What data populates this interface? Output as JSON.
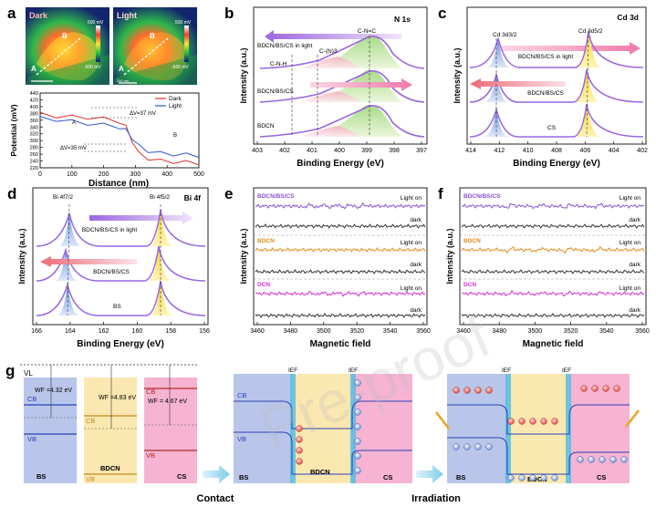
{
  "panel_labels": {
    "a": "a",
    "b": "b",
    "c": "c",
    "d": "d",
    "e": "e",
    "f": "f",
    "g": "g"
  },
  "watermark": "Pre-proof",
  "panel_a": {
    "map_dark_label": "Dark",
    "map_light_label": "Light",
    "map_dark_scale_top": "500 mV",
    "map_dark_scale_bottom": "-500 mV",
    "map_light_scale_top": "500 mV",
    "map_light_scale_bottom": "-500 mV",
    "point_A": "A",
    "point_B": "B",
    "scale_bar": "200 nm",
    "chart_data": {
      "type": "line",
      "xlabel": "Distance (nm)",
      "ylabel": "Potential (mV)",
      "xlim": [
        0,
        500
      ],
      "ylim": [
        220,
        440
      ],
      "xticks": [
        "0",
        "100",
        "200",
        "300",
        "400",
        "500"
      ],
      "yticks": [
        "220",
        "240",
        "260",
        "280",
        "300",
        "320",
        "340",
        "360",
        "380",
        "400",
        "420",
        "440"
      ],
      "legend": [
        "Dark",
        "Light"
      ],
      "series": [
        {
          "name": "Dark",
          "color": "#e0312b",
          "x": [
            0,
            50,
            100,
            150,
            200,
            250,
            270,
            290,
            310,
            340,
            380,
            420,
            460,
            500
          ],
          "y": [
            378,
            372,
            370,
            368,
            364,
            356,
            340,
            300,
            262,
            248,
            240,
            238,
            236,
            234
          ]
        },
        {
          "name": "Light",
          "color": "#3256d6",
          "x": [
            0,
            50,
            100,
            150,
            200,
            250,
            270,
            290,
            310,
            340,
            380,
            420,
            460,
            500
          ],
          "y": [
            366,
            362,
            356,
            350,
            346,
            340,
            330,
            308,
            284,
            270,
            262,
            260,
            258,
            256
          ]
        }
      ],
      "annotations": [
        "ΔV=37 mV",
        "ΔV=35 mV",
        "A",
        "B"
      ]
    }
  },
  "panel_b": {
    "title": "N 1s",
    "chart_data": {
      "type": "line",
      "xlabel": "Binding Energy (eV)",
      "ylabel": "Intensity (a.u.)",
      "xlim": [
        403,
        397
      ],
      "xticks": [
        "403",
        "402",
        "401",
        "400",
        "399",
        "398",
        "397"
      ],
      "series_labels": [
        "BDCN/BS/CS in light",
        "BDCN/BS/CS",
        "BDCN"
      ],
      "peak_labels": [
        "C-N-H",
        "C-(N)3",
        "C-N=C"
      ]
    }
  },
  "panel_c": {
    "title": "Cd 3d",
    "chart_data": {
      "type": "line",
      "xlabel": "Binding Energy (eV)",
      "ylabel": "Intensity (a.u.)",
      "xlim": [
        414,
        402
      ],
      "xticks": [
        "414",
        "412",
        "410",
        "408",
        "406",
        "404",
        "402"
      ],
      "series_labels": [
        "BDCN/BS/CS in light",
        "BDCN/BS/CS",
        "CS"
      ],
      "peak_labels": [
        "Cd 3d3/2",
        "Cd 3d5/2"
      ]
    }
  },
  "panel_d": {
    "title": "Bi 4f",
    "chart_data": {
      "type": "line",
      "xlabel": "Binding Energy (eV)",
      "ylabel": "Intensity (a.u.)",
      "xlim": [
        166,
        156
      ],
      "xticks": [
        "166",
        "164",
        "162",
        "160",
        "158",
        "156"
      ],
      "series_labels": [
        "BDCN/BS/CS in light",
        "BDCN/BS/CS",
        "BS"
      ],
      "peak_labels": [
        "Bi 4f7/2",
        "Bi 4f5/2"
      ]
    }
  },
  "panel_e": {
    "chart_data": {
      "type": "line",
      "xlabel": "Magnetic field",
      "ylabel": "Intensity (a.u.)",
      "xlim": [
        3460,
        3560
      ],
      "xticks": [
        "3460",
        "3480",
        "3500",
        "3520",
        "3540",
        "3560"
      ],
      "groups": [
        "BDCN/BS/CS",
        "BDCN",
        "DCN"
      ],
      "states": [
        "Light on",
        "dark"
      ]
    }
  },
  "panel_f": {
    "chart_data": {
      "type": "line",
      "xlabel": "Magnetic field",
      "ylabel": "Intensity (a.u.)",
      "xlim": [
        3460,
        3560
      ],
      "xticks": [
        "3460",
        "3480",
        "3500",
        "3520",
        "3540",
        "3560"
      ],
      "groups": [
        "BDCN/BS/CS",
        "BDCN",
        "DCN"
      ],
      "states": [
        "Light on",
        "dark"
      ]
    }
  },
  "panel_g": {
    "vl": "VL",
    "cb": "CB",
    "vb": "VB",
    "wf_bs": "WF =4.32 eV",
    "wf_bdcn": "WF =4.83 eV",
    "wf_cs": "WF = 4.67 eV",
    "bs": "BS",
    "bdcn": "BDCN",
    "cs": "CS",
    "ief": "IEF",
    "contact": "Contact",
    "irradiation": "Irradiation"
  },
  "colors": {
    "bs": "#b9c6ea",
    "bdcn": "#fbe7b0",
    "cs": "#f6b3d2",
    "dark": "#e0312b",
    "light": "#3256d6",
    "purple": "#8a4fd6",
    "orange": "#e58a1c",
    "magenta": "#d62ed0"
  }
}
